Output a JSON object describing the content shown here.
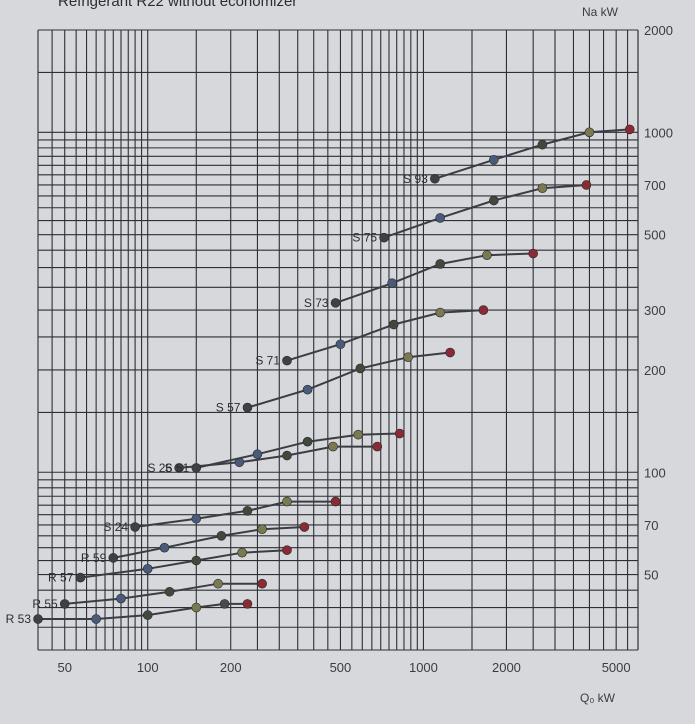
{
  "chart_data": {
    "type": "line",
    "title": "Refrigerant R22 without economizer",
    "xlabel": "Q₀ kW",
    "ylabel": "Na kW",
    "x_scale": "log",
    "y_scale": "log",
    "xlim": [
      40,
      6000
    ],
    "ylim": [
      30,
      2000
    ],
    "x_ticks": [
      50,
      100,
      200,
      500,
      1000,
      2000,
      5000
    ],
    "y_ticks": [
      50,
      70,
      100,
      200,
      300,
      500,
      700,
      1000,
      2000
    ],
    "grid": true,
    "series": [
      {
        "name": "R 53",
        "points": [
          [
            40,
            37
          ],
          [
            65,
            37
          ],
          [
            100,
            38
          ],
          [
            150,
            40
          ],
          [
            190,
            41
          ],
          [
            230,
            41
          ]
        ],
        "marker_colors": [
          "#3f3f46",
          "#4a5a7a",
          "#3f4a3c",
          "#7a7a50",
          "#4a4a4a",
          "#8a2a35"
        ]
      },
      {
        "name": "R 55",
        "points": [
          [
            50,
            41
          ],
          [
            80,
            42.5
          ],
          [
            120,
            44.5
          ],
          [
            180,
            47
          ],
          [
            260,
            47
          ]
        ],
        "marker_colors": [
          "#3f3f46",
          "#4a5a7a",
          "#3f4a3c",
          "#7a7a50",
          "#8a2a35"
        ]
      },
      {
        "name": "R 57",
        "points": [
          [
            57,
            49
          ],
          [
            100,
            52
          ],
          [
            150,
            55
          ],
          [
            220,
            58
          ],
          [
            320,
            59
          ]
        ],
        "marker_colors": [
          "#3f3f46",
          "#4a5a7a",
          "#3f4a3c",
          "#7a7a50",
          "#8a2a35"
        ]
      },
      {
        "name": "R 59",
        "points": [
          [
            75,
            56
          ],
          [
            115,
            60
          ],
          [
            185,
            65
          ],
          [
            260,
            68
          ],
          [
            370,
            69
          ]
        ],
        "marker_colors": [
          "#3f3f46",
          "#4a5a7a",
          "#3f4a3c",
          "#7a7a50",
          "#8a2a35"
        ]
      },
      {
        "name": "S 24",
        "points": [
          [
            90,
            69
          ],
          [
            150,
            73
          ],
          [
            230,
            77
          ],
          [
            320,
            82
          ],
          [
            480,
            82
          ]
        ],
        "marker_colors": [
          "#3f3f46",
          "#4a5a7a",
          "#3f4a3c",
          "#7a7a50",
          "#8a2a35"
        ]
      },
      {
        "name": "S 26",
        "points": [
          [
            130,
            103
          ],
          [
            215,
            107
          ],
          [
            320,
            112
          ],
          [
            470,
            119
          ],
          [
            680,
            119
          ]
        ],
        "marker_colors": [
          "#3f3f46",
          "#4a5a7a",
          "#3f4a3c",
          "#7a7a50",
          "#8a2a35"
        ]
      },
      {
        "name": "S 51",
        "points": [
          [
            150,
            103
          ],
          [
            250,
            113
          ],
          [
            380,
            123
          ],
          [
            580,
            129
          ],
          [
            820,
            130
          ]
        ],
        "marker_colors": [
          "#3f3f46",
          "#4a5a7a",
          "#3f4a3c",
          "#7a7a50",
          "#8a2a35"
        ]
      },
      {
        "name": "S 57",
        "points": [
          [
            230,
            155
          ],
          [
            380,
            175
          ],
          [
            590,
            202
          ],
          [
            880,
            218
          ],
          [
            1250,
            225
          ]
        ],
        "marker_colors": [
          "#3f3f46",
          "#4a5a7a",
          "#3f4a3c",
          "#7a7a50",
          "#8a2a35"
        ]
      },
      {
        "name": "S 71",
        "points": [
          [
            320,
            213
          ],
          [
            500,
            238
          ],
          [
            780,
            272
          ],
          [
            1150,
            295
          ],
          [
            1650,
            300
          ]
        ],
        "marker_colors": [
          "#3f3f46",
          "#4a5a7a",
          "#3f4a3c",
          "#7a7a50",
          "#8a2a35"
        ]
      },
      {
        "name": "S 73",
        "points": [
          [
            480,
            315
          ],
          [
            770,
            360
          ],
          [
            1150,
            410
          ],
          [
            1700,
            435
          ],
          [
            2500,
            440
          ]
        ],
        "marker_colors": [
          "#3f3f46",
          "#4a5a7a",
          "#3f4a3c",
          "#7a7a50",
          "#8a2a35"
        ]
      },
      {
        "name": "S 75",
        "points": [
          [
            720,
            490
          ],
          [
            1150,
            560
          ],
          [
            1800,
            630
          ],
          [
            2700,
            685
          ],
          [
            3900,
            700
          ]
        ],
        "marker_colors": [
          "#3f3f46",
          "#4a5a7a",
          "#3f4a3c",
          "#7a7a50",
          "#8a2a35"
        ]
      },
      {
        "name": "S 93",
        "points": [
          [
            1100,
            730
          ],
          [
            1800,
            830
          ],
          [
            2700,
            920
          ],
          [
            4000,
            1000
          ],
          [
            5600,
            1020
          ]
        ],
        "marker_colors": [
          "#3f3f46",
          "#4a5a7a",
          "#3f4a3c",
          "#7a7a50",
          "#8a2a35"
        ]
      }
    ]
  },
  "colors": {
    "background": "#d7d8dc",
    "grid": "#2c2f36",
    "line": "#3b3d44",
    "text": "#3a3c42"
  }
}
